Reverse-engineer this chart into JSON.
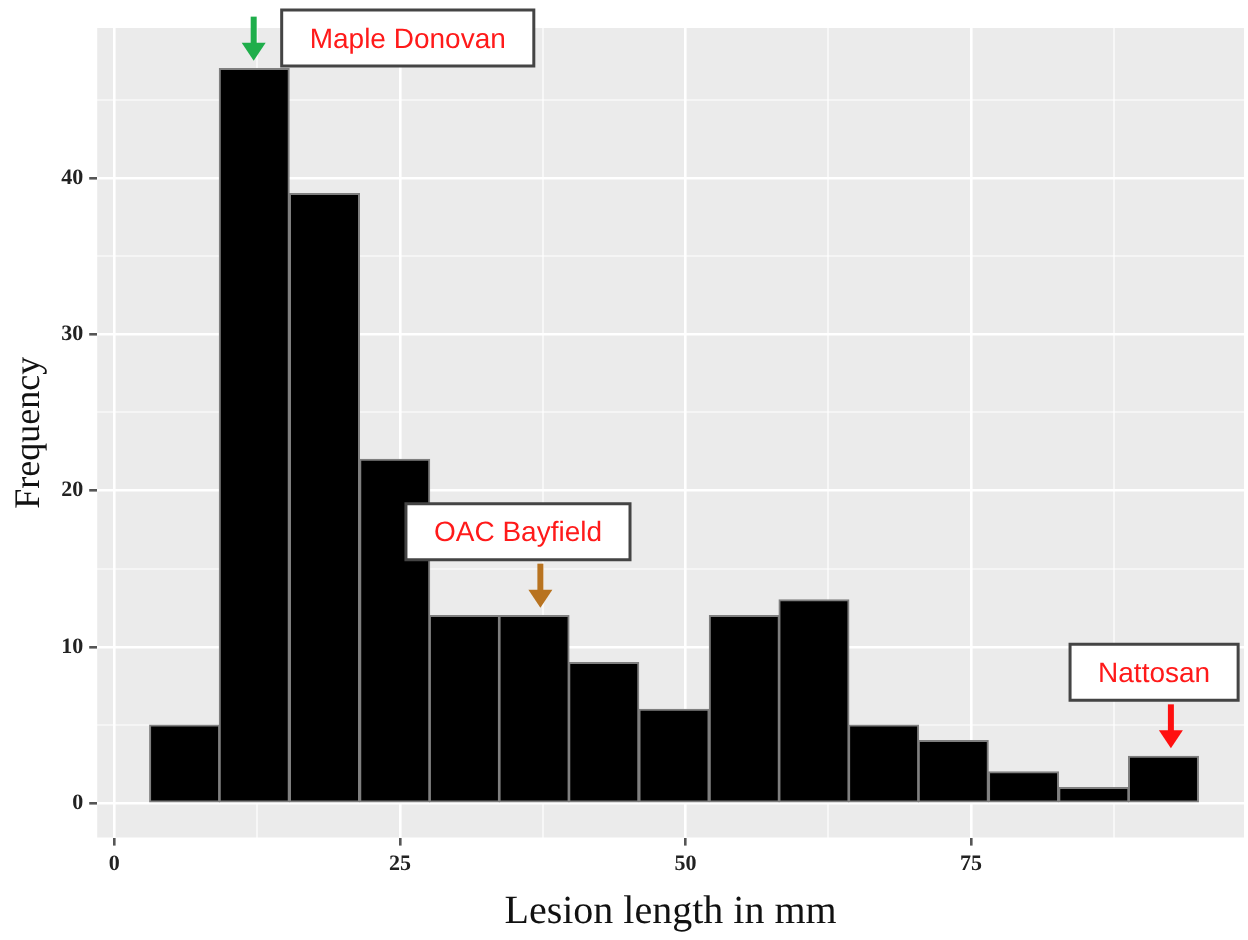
{
  "chart_data": {
    "type": "histogram",
    "xlabel": "Lesion length in mm",
    "ylabel": "Frequency",
    "bins": [
      3.1,
      9.2,
      15.3,
      21.5,
      27.6,
      33.7,
      39.8,
      45.9,
      52.1,
      58.2,
      64.3,
      70.4,
      76.5,
      82.7,
      88.8,
      94.9
    ],
    "values": [
      5,
      47,
      39,
      22,
      12,
      12,
      9,
      6,
      12,
      13,
      5,
      4,
      2,
      1,
      3
    ],
    "color": "#000000",
    "xlim": [
      -1.5,
      98.9
    ],
    "xticks": [
      0,
      {
        "value": 12.5,
        "label": null
      },
      25,
      {
        "value": 37.5,
        "label": null
      },
      50,
      {
        "value": 62.5,
        "label": null
      },
      75,
      {
        "value": 87.5,
        "label": null
      }
    ],
    "ylim": [
      -2.2,
      49.6
    ],
    "yticks": [
      0,
      {
        "value": 5,
        "label": null
      },
      10,
      {
        "value": 15,
        "label": null
      },
      20,
      {
        "value": 25,
        "label": null
      },
      30,
      {
        "value": 35,
        "label": null
      },
      40,
      {
        "value": 45,
        "label": null
      }
    ],
    "grid": true,
    "legend": false,
    "annotations": [
      {
        "text": "Maple Donovan",
        "x": 12.2,
        "y": 47
      },
      {
        "text": "OAC Bayfield",
        "x": 37.3,
        "y": 12
      },
      {
        "text": "Nattosan",
        "x": 92.5,
        "y": 3
      }
    ]
  }
}
